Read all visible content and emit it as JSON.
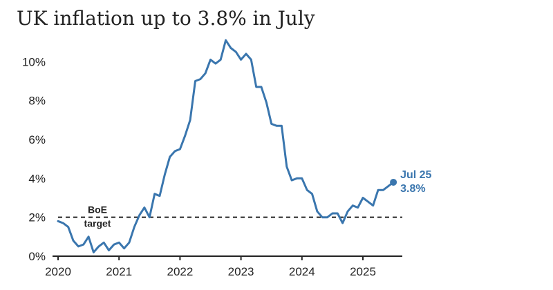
{
  "chart_data": {
    "type": "line",
    "title": "UK inflation up to 3.8% in July",
    "xlabel": "",
    "ylabel": "",
    "x_ticks": [
      "2020",
      "2021",
      "2022",
      "2023",
      "2024",
      "2025"
    ],
    "y_ticks": [
      "0%",
      "2%",
      "4%",
      "6%",
      "8%",
      "10%"
    ],
    "ylim": [
      0,
      11.5
    ],
    "x_range": [
      "2020-01",
      "2025-07"
    ],
    "grid": false,
    "line_color": "#3a76ae",
    "reference_line": {
      "value": 2,
      "label_line1": "BoE",
      "label_line2": "target",
      "style": "dashed",
      "color": "#222222"
    },
    "end_label": {
      "line1": "Jul 25",
      "line2": "3.8%"
    },
    "series": [
      {
        "name": "",
        "x": [
          "2020-01",
          "2020-02",
          "2020-03",
          "2020-04",
          "2020-05",
          "2020-06",
          "2020-07",
          "2020-08",
          "2020-09",
          "2020-10",
          "2020-11",
          "2020-12",
          "2021-01",
          "2021-02",
          "2021-03",
          "2021-04",
          "2021-05",
          "2021-06",
          "2021-07",
          "2021-08",
          "2021-09",
          "2021-10",
          "2021-11",
          "2021-12",
          "2022-01",
          "2022-02",
          "2022-03",
          "2022-04",
          "2022-05",
          "2022-06",
          "2022-07",
          "2022-08",
          "2022-09",
          "2022-10",
          "2022-11",
          "2022-12",
          "2023-01",
          "2023-02",
          "2023-03",
          "2023-04",
          "2023-05",
          "2023-06",
          "2023-07",
          "2023-08",
          "2023-09",
          "2023-10",
          "2023-11",
          "2023-12",
          "2024-01",
          "2024-02",
          "2024-03",
          "2024-04",
          "2024-05",
          "2024-06",
          "2024-07",
          "2024-08",
          "2024-09",
          "2024-10",
          "2024-11",
          "2024-12",
          "2025-01",
          "2025-02",
          "2025-03",
          "2025-04",
          "2025-05",
          "2025-06",
          "2025-07"
        ],
        "y": [
          1.8,
          1.7,
          1.5,
          0.8,
          0.5,
          0.6,
          1.0,
          0.2,
          0.5,
          0.7,
          0.3,
          0.6,
          0.7,
          0.4,
          0.7,
          1.5,
          2.1,
          2.5,
          2.0,
          3.2,
          3.1,
          4.2,
          5.1,
          5.4,
          5.5,
          6.2,
          7.0,
          9.0,
          9.1,
          9.4,
          10.1,
          9.9,
          10.1,
          11.1,
          10.7,
          10.5,
          10.1,
          10.4,
          10.1,
          8.7,
          8.7,
          7.9,
          6.8,
          6.7,
          6.7,
          4.6,
          3.9,
          4.0,
          4.0,
          3.4,
          3.2,
          2.3,
          2.0,
          2.0,
          2.2,
          2.2,
          1.7,
          2.3,
          2.6,
          2.5,
          3.0,
          2.8,
          2.6,
          3.4,
          3.4,
          3.6,
          3.8
        ]
      }
    ]
  }
}
